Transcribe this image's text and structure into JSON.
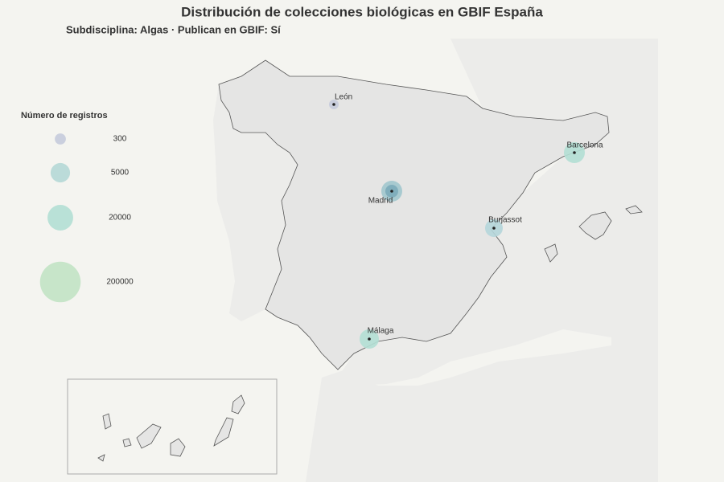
{
  "title": "Distribución de  colecciones biológicas  en GBIF España",
  "subtitle": "Subdisciplina: Algas · Publican en GBIF: Sí",
  "legend": {
    "title": "Número de registros",
    "values": [
      300,
      5000,
      20000,
      200000
    ]
  },
  "cities": [
    "León",
    "Madrid",
    "Barcelona",
    "Burjassot",
    "Málaga"
  ]
}
